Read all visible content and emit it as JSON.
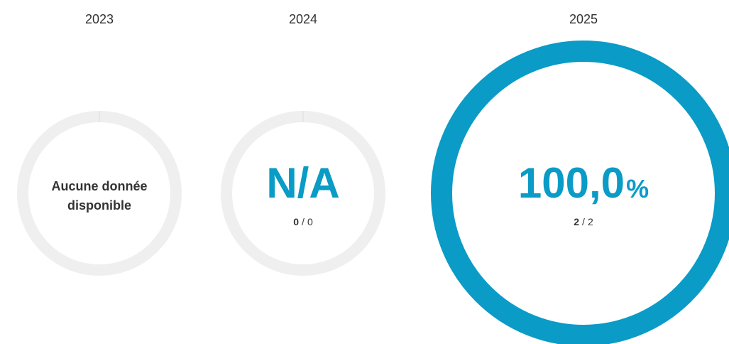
{
  "gauges": [
    {
      "year": "2023",
      "message": [
        "Aucune donnée",
        "disponible"
      ]
    },
    {
      "year": "2024",
      "value": "N/A",
      "count": "0",
      "separator": "/",
      "total": "0"
    },
    {
      "year": "2025",
      "value": "100,0",
      "unit": "%",
      "count": "2",
      "separator": "/",
      "total": "2"
    }
  ]
}
